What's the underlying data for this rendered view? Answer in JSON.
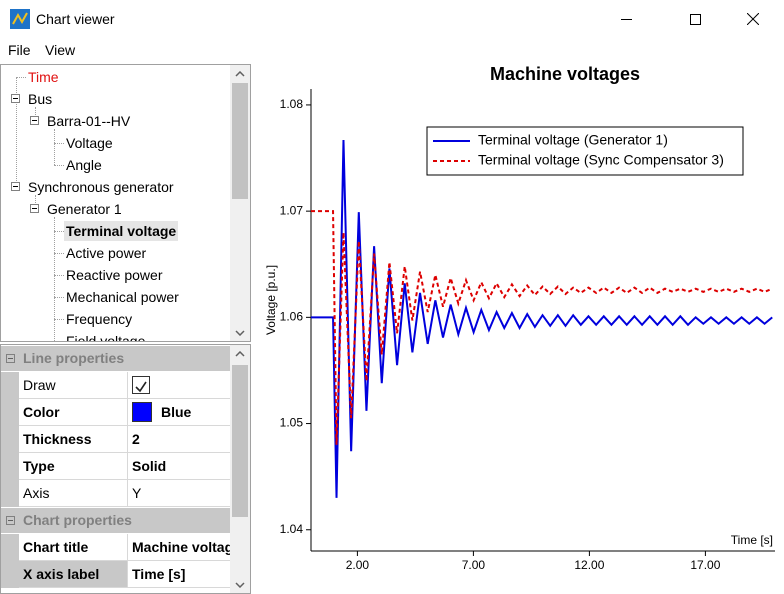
{
  "window": {
    "title": "Chart viewer"
  },
  "menu": [
    "File",
    "View"
  ],
  "tree": [
    {
      "label": "Time"
    },
    {
      "label": "Bus"
    },
    {
      "label": "Barra-01--HV"
    },
    {
      "label": "Voltage"
    },
    {
      "label": "Angle"
    },
    {
      "label": "Synchronous generator"
    },
    {
      "label": "Generator 1"
    },
    {
      "label": "Terminal voltage"
    },
    {
      "label": "Active power"
    },
    {
      "label": "Reactive power"
    },
    {
      "label": "Mechanical power"
    },
    {
      "label": "Frequency"
    },
    {
      "label": "Field voltage"
    }
  ],
  "line_properties": {
    "title": "Line properties",
    "rows": [
      {
        "name": "Draw",
        "checked": true
      },
      {
        "name": "Color",
        "value": "Blue",
        "swatch": "#0000ff"
      },
      {
        "name": "Thickness",
        "value": 2
      },
      {
        "name": "Type",
        "value": "Solid"
      },
      {
        "name": "Axis",
        "value": "Y"
      }
    ]
  },
  "chart_properties": {
    "title": "Chart properties",
    "rows": [
      {
        "name": "Chart title",
        "value": "Machine voltages"
      },
      {
        "name": "X axis label",
        "value": "Time [s]"
      }
    ]
  },
  "chart_data": {
    "type": "line",
    "title": "Machine voltages",
    "x_label": "Time [s]",
    "y_label": "Voltage [p.u.]",
    "xlim": [
      0,
      20
    ],
    "ylim": [
      1.038,
      1.0815
    ],
    "xticks": [
      {
        "value": 2,
        "label": "2.00"
      },
      {
        "value": 7,
        "label": "7.00"
      },
      {
        "value": 12,
        "label": "12.00"
      },
      {
        "value": 17,
        "label": "17.00"
      }
    ],
    "yticks": [
      1.04,
      1.05,
      1.06,
      1.07,
      1.08
    ],
    "grid": false,
    "legend": "top-right",
    "x": [
      0,
      0.95,
      1.1,
      1.4,
      1.73,
      2.06,
      2.39,
      2.72,
      3.05,
      3.38,
      3.71,
      4.04,
      4.37,
      4.7,
      5.03,
      5.36,
      5.69,
      6.02,
      6.35,
      6.68,
      7.01,
      7.34,
      7.67,
      8.0,
      8.33,
      8.66,
      8.99,
      9.32,
      9.65,
      9.98,
      10.31,
      10.64,
      10.97,
      11.3,
      11.63,
      11.96,
      12.29,
      12.62,
      12.95,
      13.28,
      13.61,
      13.94,
      14.27,
      14.6,
      14.93,
      15.26,
      15.59,
      15.92,
      16.25,
      16.58,
      16.91,
      17.24,
      17.57,
      17.9,
      18.23,
      18.56,
      18.89,
      19.22,
      19.55,
      19.88
    ],
    "series": [
      {
        "name": "Terminal voltage (Generator 1)",
        "color": "#0000dd",
        "line_style": "solid",
        "values": [
          1.06,
          1.06,
          1.043,
          1.0767,
          1.0474,
          1.0699,
          1.0512,
          1.0667,
          1.0538,
          1.0646,
          1.0555,
          1.0632,
          1.0567,
          1.0623,
          1.0575,
          1.0616,
          1.0581,
          1.0612,
          1.0584,
          1.0609,
          1.0586,
          1.0607,
          1.0588,
          1.0605,
          1.059,
          1.0604,
          1.059,
          1.0603,
          1.0591,
          1.0602,
          1.0592,
          1.0602,
          1.0592,
          1.0602,
          1.0593,
          1.0601,
          1.0593,
          1.0601,
          1.0593,
          1.0601,
          1.0593,
          1.0601,
          1.0593,
          1.0601,
          1.0593,
          1.0601,
          1.0593,
          1.0601,
          1.0593,
          1.06,
          1.0594,
          1.06,
          1.0594,
          1.06,
          1.0594,
          1.06,
          1.0594,
          1.06,
          1.0594,
          1.06
        ]
      },
      {
        "name": "Terminal voltage (Sync Compensator 3)",
        "color": "#dd0000",
        "line_style": "dashed",
        "values": [
          1.07,
          1.07,
          1.048,
          1.068,
          1.0505,
          1.0672,
          1.054,
          1.066,
          1.0565,
          1.0652,
          1.0585,
          1.0648,
          1.0597,
          1.0643,
          1.0605,
          1.064,
          1.061,
          1.0637,
          1.0613,
          1.0635,
          1.0616,
          1.0633,
          1.0618,
          1.0632,
          1.0619,
          1.0631,
          1.062,
          1.063,
          1.0621,
          1.0629,
          1.0622,
          1.0629,
          1.0622,
          1.0628,
          1.0623,
          1.0628,
          1.0623,
          1.0628,
          1.0623,
          1.0628,
          1.0623,
          1.0628,
          1.0623,
          1.0628,
          1.0623,
          1.0627,
          1.0624,
          1.0627,
          1.0624,
          1.0627,
          1.0624,
          1.0627,
          1.0624,
          1.0627,
          1.0624,
          1.0627,
          1.0624,
          1.0627,
          1.0624,
          1.0627
        ]
      }
    ]
  }
}
